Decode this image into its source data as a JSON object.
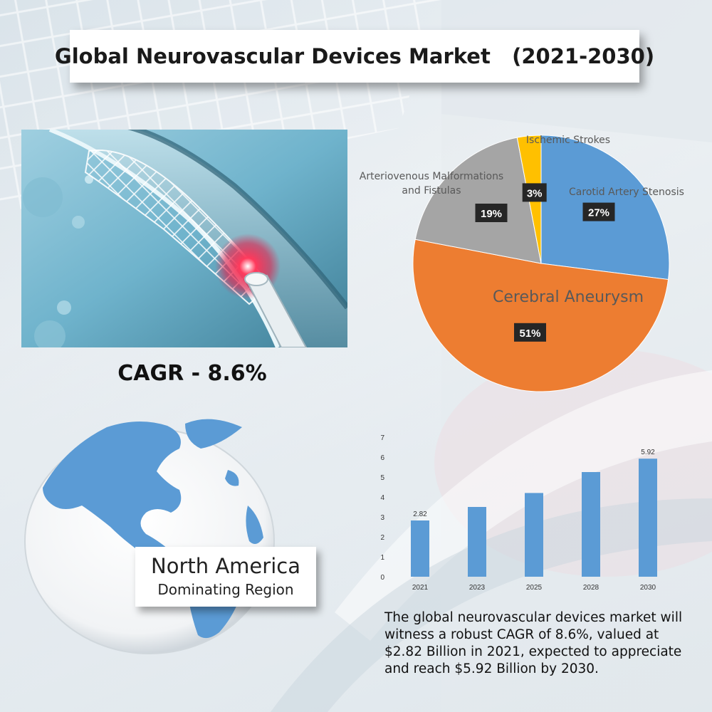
{
  "title": "Global Neurovascular Devices Market   (2021-2030)",
  "cagr_label": "CAGR - 8.6%",
  "region": {
    "name": "North America",
    "subtitle": "Dominating Region"
  },
  "summary": "The global neurovascular devices market will witness a robust CAGR of 8.6%, valued at $2.82 Billion in 2021, expected to appreciate and reach $5.92 Billion by 2030.",
  "colors": {
    "pie_blue": "#5b9bd5",
    "pie_orange": "#ed7d31",
    "pie_gray": "#a5a5a5",
    "pie_yellow": "#ffc000",
    "bar_blue": "#5b9bd5",
    "label_box": "#262626"
  },
  "images": {
    "stent": "stent-in-artery-illustration",
    "globe": "globe-americas-icon"
  },
  "chart_data": [
    {
      "type": "pie",
      "title": "",
      "slices": [
        {
          "label": "Carotid Artery Stenosis",
          "value": 27,
          "display": "27%"
        },
        {
          "label": "Cerebral Aneurysm",
          "value": 51,
          "display": "51%"
        },
        {
          "label": "Arteriovenous Malformations and Fistulas",
          "value": 19,
          "display": "19%"
        },
        {
          "label": "Ischemic Strokes",
          "value": 3,
          "display": "3%"
        }
      ]
    },
    {
      "type": "bar",
      "title": "",
      "xlabel": "",
      "ylabel": "",
      "categories": [
        "2021",
        "2023",
        "2025",
        "2028",
        "2030"
      ],
      "values": [
        2.82,
        3.5,
        4.2,
        5.25,
        5.92
      ],
      "data_labels": [
        "2.82",
        "",
        "",
        "",
        "5.92"
      ],
      "ylim": [
        0,
        7
      ],
      "yticks": [
        0,
        1,
        2,
        3,
        4,
        5,
        6,
        7
      ],
      "grid": false,
      "legend": "none"
    }
  ]
}
